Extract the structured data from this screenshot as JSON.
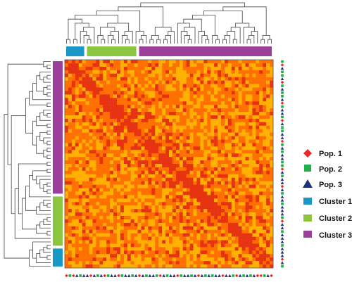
{
  "chart_data": {
    "type": "heatmap",
    "title": "",
    "xlabel": "",
    "ylabel": "",
    "n_samples": 60,
    "color_scale": [
      "#ffff33",
      "#ffb000",
      "#ff7000",
      "#e63312"
    ],
    "value_range": [
      0,
      1
    ],
    "legend": [
      {
        "label": "Pop. 1",
        "marker": "diamond",
        "color": "#e82a2a"
      },
      {
        "label": "Pop. 2",
        "marker": "square",
        "color": "#21b04b"
      },
      {
        "label": "Pop. 3",
        "marker": "triangle",
        "color": "#1f2f7a"
      },
      {
        "label": "Cluster 1",
        "marker": "bar",
        "color": "#1997c6"
      },
      {
        "label": "Cluster 2",
        "marker": "bar",
        "color": "#8cc63f"
      },
      {
        "label": "Cluster 3",
        "marker": "bar",
        "color": "#9b3f9b"
      }
    ],
    "clusters": [
      {
        "name": "Cluster 1",
        "color": "#1997c6",
        "size": 6
      },
      {
        "name": "Cluster 2",
        "color": "#8cc63f",
        "size": 15
      },
      {
        "name": "Cluster 3",
        "color": "#9b3f9b",
        "size": 39
      }
    ],
    "x_order_populations": [
      1,
      2,
      1,
      3,
      2,
      3,
      3,
      1,
      3,
      2,
      3,
      1,
      2,
      3,
      3,
      1,
      2,
      3,
      3,
      2,
      3,
      1,
      3,
      2,
      3,
      3,
      2,
      1,
      3,
      2,
      3,
      3,
      1,
      2,
      3,
      3,
      2,
      3,
      1,
      3,
      2,
      3,
      2,
      3,
      3,
      1,
      3,
      3,
      2,
      1,
      3,
      2,
      3,
      2,
      3,
      1,
      1,
      2,
      3,
      1
    ],
    "y_order_populations": [
      2,
      1,
      3,
      2,
      2,
      3,
      1,
      2,
      3,
      2,
      2,
      3,
      1,
      2,
      3,
      3,
      2,
      1,
      3,
      2,
      2,
      3,
      3,
      1,
      2,
      3,
      2,
      3,
      3,
      2,
      2,
      1,
      3,
      2,
      3,
      3,
      1,
      3,
      2,
      3,
      3,
      2,
      3,
      3,
      3,
      2,
      1,
      3,
      3,
      2,
      3,
      3,
      3,
      2,
      3,
      3,
      3,
      1,
      3,
      2
    ],
    "dendrogram": {
      "top": "present",
      "left": "present"
    }
  },
  "colors": {
    "pop1": "#e82a2a",
    "pop2": "#21b04b",
    "pop3": "#1f2f7a"
  }
}
